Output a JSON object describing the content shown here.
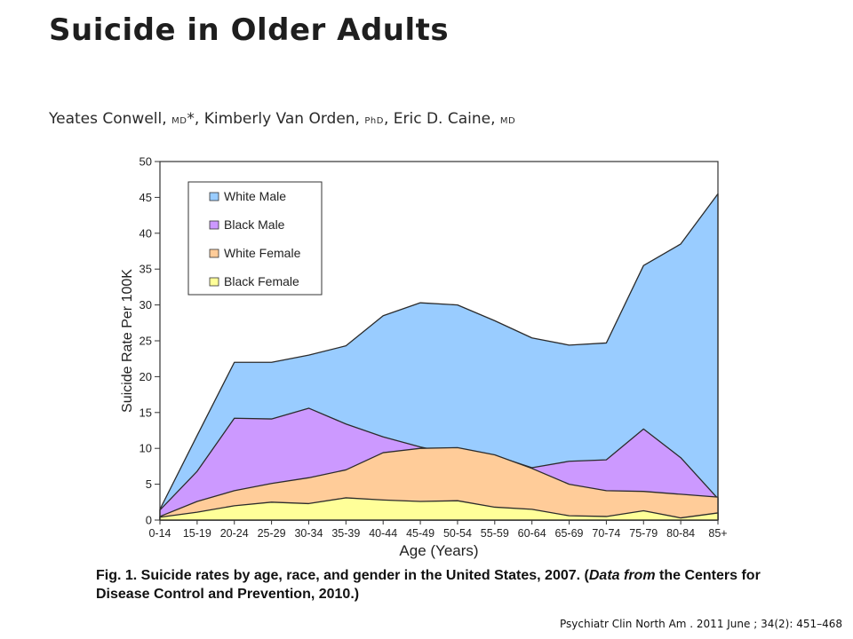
{
  "header": {
    "title": "Suicide in Older Adults",
    "authors": {
      "a1": "Yeates Conwell, ",
      "a1_deg": "MD",
      "a1_mark": "*",
      "a2": ", Kimberly Van Orden, ",
      "a2_deg": "PhD",
      "a3": ", Eric D. Caine, ",
      "a3_deg": "MD"
    }
  },
  "caption": {
    "label": "Fig. 1.",
    "text": " Suicide rates by age, race, and gender in the United States, 2007. (",
    "source_italic": "Data from",
    "source_rest": " the Centers for Disease Control and Prevention, 2010.)"
  },
  "citation": "Psychiatr Clin North Am . 2011 June ; 34(2): 451–468",
  "chart_data": {
    "type": "area",
    "title": "",
    "xlabel": "Age (Years)",
    "ylabel": "Suicide Rate Per 100K",
    "ylim": [
      0,
      50
    ],
    "yticks": [
      0,
      5,
      10,
      15,
      20,
      25,
      30,
      35,
      40,
      45,
      50
    ],
    "categories": [
      "0-14",
      "15-19",
      "20-24",
      "25-29",
      "30-34",
      "35-39",
      "40-44",
      "45-49",
      "50-54",
      "55-59",
      "60-64",
      "65-69",
      "70-74",
      "75-79",
      "80-84",
      "85+"
    ],
    "legend_position": "top-left",
    "grid": false,
    "series": [
      {
        "name": "White Male",
        "color": "#99ccff",
        "values": [
          1.5,
          11.8,
          22.0,
          22.0,
          23.0,
          24.3,
          28.5,
          30.3,
          30.0,
          27.8,
          25.4,
          24.4,
          24.7,
          35.5,
          38.5,
          45.5
        ]
      },
      {
        "name": "Black Male",
        "color": "#cc99ff",
        "values": [
          1.4,
          6.8,
          14.2,
          14.1,
          15.6,
          13.4,
          11.6,
          10.2,
          9.1,
          9.0,
          7.3,
          8.2,
          8.4,
          12.7,
          8.7,
          3.0
        ]
      },
      {
        "name": "White Female",
        "color": "#ffcc99",
        "values": [
          0.5,
          2.6,
          4.1,
          5.1,
          5.9,
          7.0,
          9.4,
          10.0,
          10.1,
          9.1,
          7.2,
          5.0,
          4.1,
          4.0,
          3.6,
          3.2
        ]
      },
      {
        "name": "Black Female",
        "color": "#ffff99",
        "values": [
          0.4,
          1.1,
          2.0,
          2.5,
          2.3,
          3.1,
          2.8,
          2.6,
          2.7,
          1.8,
          1.5,
          0.6,
          0.5,
          1.3,
          0.3,
          1.0
        ]
      }
    ]
  }
}
